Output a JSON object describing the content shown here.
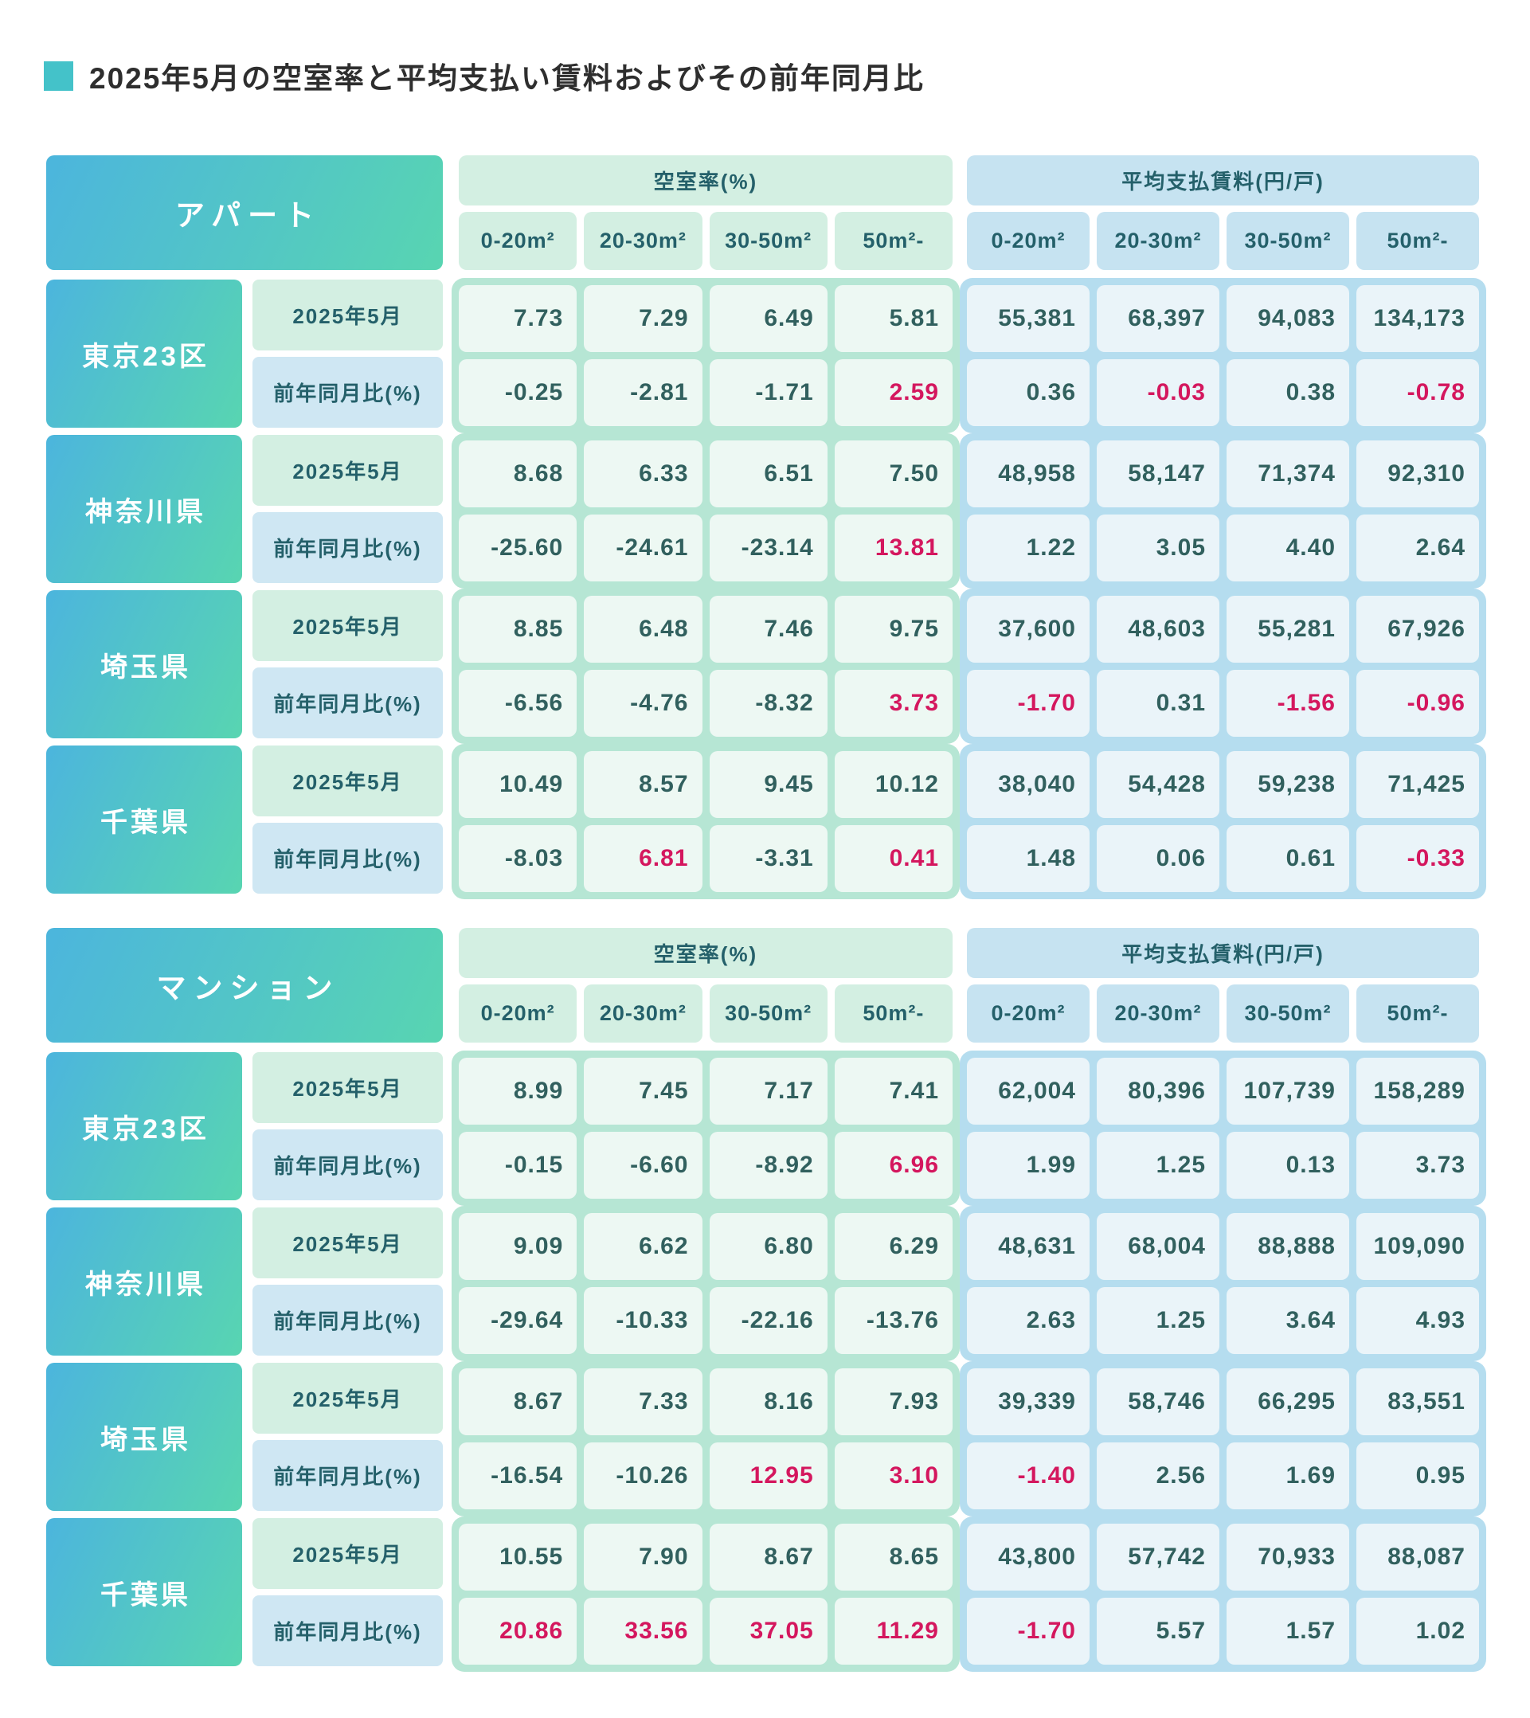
{
  "title": "2025年5月の空室率と平均支払い賃料およびその前年同月比",
  "colors": {
    "accent_gradient_start": "#4cb5dd",
    "accent_gradient_end": "#58d5b1",
    "vacancy_block": "#b6e6d4",
    "vacancy_header": "#d3efe2",
    "rent_block": "#b5ddef",
    "rent_header": "#c6e3f1",
    "value_text": "#31605e",
    "header_text": "#24606a",
    "negative_highlight_red": "#d4175e",
    "title_bullet": "#44c2c9"
  },
  "legend": {
    "vacancy_group": "空室率(%)",
    "rent_group": "平均支払賃料(円/戸)",
    "size_columns": [
      "0-20m²",
      "20-30m²",
      "30-50m²",
      "50m²-"
    ],
    "row_current": "2025年5月",
    "row_yoy": "前年同月比(%)"
  },
  "chart_data": {
    "type": "table",
    "tables": [
      {
        "name": "アパート",
        "regions": [
          {
            "name": "東京23区",
            "vacancy_current": [
              {
                "v": "7.73"
              },
              {
                "v": "7.29"
              },
              {
                "v": "6.49"
              },
              {
                "v": "5.81"
              }
            ],
            "vacancy_yoy": [
              {
                "v": "-0.25"
              },
              {
                "v": "-2.81"
              },
              {
                "v": "-1.71"
              },
              {
                "v": "2.59",
                "red": true
              }
            ],
            "rent_current": [
              {
                "v": "55,381"
              },
              {
                "v": "68,397"
              },
              {
                "v": "94,083"
              },
              {
                "v": "134,173"
              }
            ],
            "rent_yoy": [
              {
                "v": "0.36"
              },
              {
                "v": "-0.03",
                "red": true
              },
              {
                "v": "0.38"
              },
              {
                "v": "-0.78",
                "red": true
              }
            ]
          },
          {
            "name": "神奈川県",
            "vacancy_current": [
              {
                "v": "8.68"
              },
              {
                "v": "6.33"
              },
              {
                "v": "6.51"
              },
              {
                "v": "7.50"
              }
            ],
            "vacancy_yoy": [
              {
                "v": "-25.60"
              },
              {
                "v": "-24.61"
              },
              {
                "v": "-23.14"
              },
              {
                "v": "13.81",
                "red": true
              }
            ],
            "rent_current": [
              {
                "v": "48,958"
              },
              {
                "v": "58,147"
              },
              {
                "v": "71,374"
              },
              {
                "v": "92,310"
              }
            ],
            "rent_yoy": [
              {
                "v": "1.22"
              },
              {
                "v": "3.05"
              },
              {
                "v": "4.40"
              },
              {
                "v": "2.64"
              }
            ]
          },
          {
            "name": "埼玉県",
            "vacancy_current": [
              {
                "v": "8.85"
              },
              {
                "v": "6.48"
              },
              {
                "v": "7.46"
              },
              {
                "v": "9.75"
              }
            ],
            "vacancy_yoy": [
              {
                "v": "-6.56"
              },
              {
                "v": "-4.76"
              },
              {
                "v": "-8.32"
              },
              {
                "v": "3.73",
                "red": true
              }
            ],
            "rent_current": [
              {
                "v": "37,600"
              },
              {
                "v": "48,603"
              },
              {
                "v": "55,281"
              },
              {
                "v": "67,926"
              }
            ],
            "rent_yoy": [
              {
                "v": "-1.70",
                "red": true
              },
              {
                "v": "0.31"
              },
              {
                "v": "-1.56",
                "red": true
              },
              {
                "v": "-0.96",
                "red": true
              }
            ]
          },
          {
            "name": "千葉県",
            "vacancy_current": [
              {
                "v": "10.49"
              },
              {
                "v": "8.57"
              },
              {
                "v": "9.45"
              },
              {
                "v": "10.12"
              }
            ],
            "vacancy_yoy": [
              {
                "v": "-8.03"
              },
              {
                "v": "6.81",
                "red": true
              },
              {
                "v": "-3.31"
              },
              {
                "v": "0.41",
                "red": true
              }
            ],
            "rent_current": [
              {
                "v": "38,040"
              },
              {
                "v": "54,428"
              },
              {
                "v": "59,238"
              },
              {
                "v": "71,425"
              }
            ],
            "rent_yoy": [
              {
                "v": "1.48"
              },
              {
                "v": "0.06"
              },
              {
                "v": "0.61"
              },
              {
                "v": "-0.33",
                "red": true
              }
            ]
          }
        ]
      },
      {
        "name": "マンション",
        "regions": [
          {
            "name": "東京23区",
            "vacancy_current": [
              {
                "v": "8.99"
              },
              {
                "v": "7.45"
              },
              {
                "v": "7.17"
              },
              {
                "v": "7.41"
              }
            ],
            "vacancy_yoy": [
              {
                "v": "-0.15"
              },
              {
                "v": "-6.60"
              },
              {
                "v": "-8.92"
              },
              {
                "v": "6.96",
                "red": true
              }
            ],
            "rent_current": [
              {
                "v": "62,004"
              },
              {
                "v": "80,396"
              },
              {
                "v": "107,739"
              },
              {
                "v": "158,289"
              }
            ],
            "rent_yoy": [
              {
                "v": "1.99"
              },
              {
                "v": "1.25"
              },
              {
                "v": "0.13"
              },
              {
                "v": "3.73"
              }
            ]
          },
          {
            "name": "神奈川県",
            "vacancy_current": [
              {
                "v": "9.09"
              },
              {
                "v": "6.62"
              },
              {
                "v": "6.80"
              },
              {
                "v": "6.29"
              }
            ],
            "vacancy_yoy": [
              {
                "v": "-29.64"
              },
              {
                "v": "-10.33"
              },
              {
                "v": "-22.16"
              },
              {
                "v": "-13.76"
              }
            ],
            "rent_current": [
              {
                "v": "48,631"
              },
              {
                "v": "68,004"
              },
              {
                "v": "88,888"
              },
              {
                "v": "109,090"
              }
            ],
            "rent_yoy": [
              {
                "v": "2.63"
              },
              {
                "v": "1.25"
              },
              {
                "v": "3.64"
              },
              {
                "v": "4.93"
              }
            ]
          },
          {
            "name": "埼玉県",
            "vacancy_current": [
              {
                "v": "8.67"
              },
              {
                "v": "7.33"
              },
              {
                "v": "8.16"
              },
              {
                "v": "7.93"
              }
            ],
            "vacancy_yoy": [
              {
                "v": "-16.54"
              },
              {
                "v": "-10.26"
              },
              {
                "v": "12.95",
                "red": true
              },
              {
                "v": "3.10",
                "red": true
              }
            ],
            "rent_current": [
              {
                "v": "39,339"
              },
              {
                "v": "58,746"
              },
              {
                "v": "66,295"
              },
              {
                "v": "83,551"
              }
            ],
            "rent_yoy": [
              {
                "v": "-1.40",
                "red": true
              },
              {
                "v": "2.56"
              },
              {
                "v": "1.69"
              },
              {
                "v": "0.95"
              }
            ]
          },
          {
            "name": "千葉県",
            "vacancy_current": [
              {
                "v": "10.55"
              },
              {
                "v": "7.90"
              },
              {
                "v": "8.67"
              },
              {
                "v": "8.65"
              }
            ],
            "vacancy_yoy": [
              {
                "v": "20.86",
                "red": true
              },
              {
                "v": "33.56",
                "red": true
              },
              {
                "v": "37.05",
                "red": true
              },
              {
                "v": "11.29",
                "red": true
              }
            ],
            "rent_current": [
              {
                "v": "43,800"
              },
              {
                "v": "57,742"
              },
              {
                "v": "70,933"
              },
              {
                "v": "88,087"
              }
            ],
            "rent_yoy": [
              {
                "v": "-1.70",
                "red": true
              },
              {
                "v": "5.57"
              },
              {
                "v": "1.57"
              },
              {
                "v": "1.02"
              }
            ]
          }
        ]
      }
    ]
  }
}
